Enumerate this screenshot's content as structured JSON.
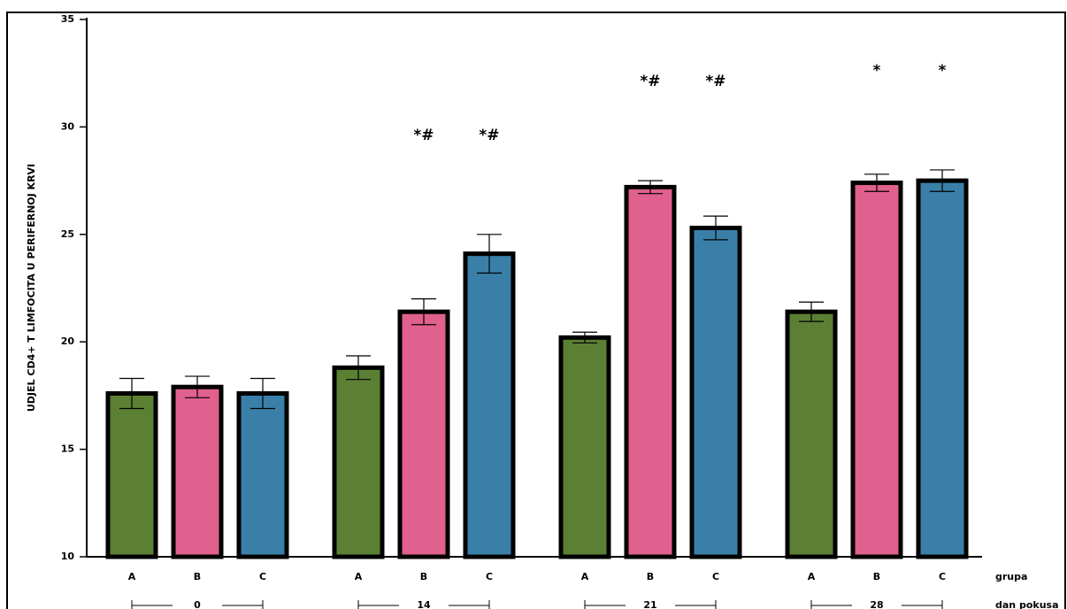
{
  "chart_data": {
    "type": "bar",
    "y_label": "UDJEL CD4+ T LIMFOCITA U PERIFERNOJ KRVI",
    "x_label_group": "grupa",
    "x_label_day": "dan pokusa",
    "categories": [
      "0",
      "14",
      "21",
      "28"
    ],
    "series": [
      {
        "name": "A",
        "color": "#5b7f33",
        "values": [
          17.6,
          18.8,
          20.2,
          21.4
        ],
        "errors": [
          0.7,
          0.55,
          0.25,
          0.45
        ]
      },
      {
        "name": "B",
        "color": "#e0608e",
        "values": [
          17.9,
          21.4,
          27.2,
          27.4
        ],
        "errors": [
          0.5,
          0.6,
          0.3,
          0.4
        ]
      },
      {
        "name": "C",
        "color": "#3a7fa8",
        "values": [
          17.6,
          24.1,
          25.3,
          27.5
        ],
        "errors": [
          0.7,
          0.9,
          0.55,
          0.5
        ]
      }
    ],
    "annotations": [
      {
        "text": "*#",
        "category": 1,
        "series": 1
      },
      {
        "text": "*#",
        "category": 1,
        "series": 2
      },
      {
        "text": "*#",
        "category": 2,
        "series": 1
      },
      {
        "text": "*#",
        "category": 2,
        "series": 2
      },
      {
        "text": "*",
        "category": 3,
        "series": 1
      },
      {
        "text": "*",
        "category": 3,
        "series": 2
      }
    ],
    "ylim": [
      10,
      35
    ],
    "yticks": [
      10,
      15,
      20,
      25,
      30,
      35
    ]
  }
}
